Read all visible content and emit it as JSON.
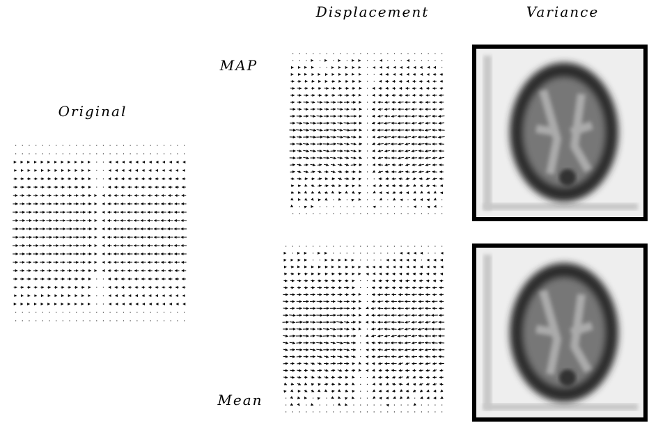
{
  "figure": {
    "headers": {
      "displacement": "Displacement",
      "variance": "Variance"
    },
    "rows": {
      "map": "MAP",
      "mean": "Mean"
    },
    "original": "Original"
  }
}
